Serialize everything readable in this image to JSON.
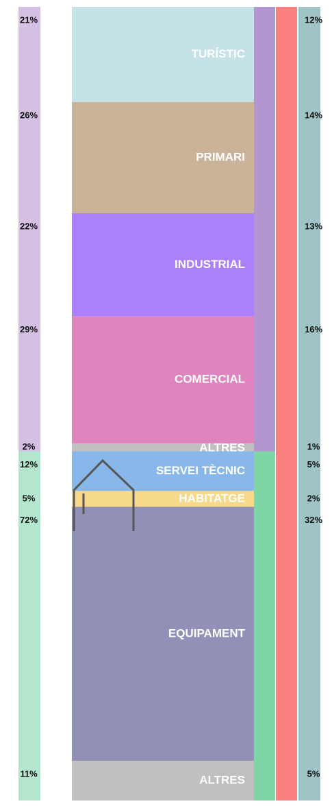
{
  "chart_data": {
    "type": "stacked-strip",
    "ylim": [
      0,
      100
    ],
    "groups": [
      {
        "color": "#d4c0e2",
        "bar_color": "#b396cf",
        "categories": [
          "TURÍSTIC",
          "PRIMARI",
          "INDUSTRIAL",
          "COMERCIAL",
          "ALTRES"
        ],
        "colors": [
          "#c5e3e7",
          "#cbb399",
          "#ac80fc",
          "#e084c0",
          "#c0c0c0"
        ],
        "values": [
          12,
          14,
          13,
          16,
          1
        ],
        "value_labels": [
          "12%",
          "14%",
          "13%",
          "16%",
          "1%"
        ],
        "group_values": [
          21,
          26,
          22,
          29,
          2
        ],
        "group_value_labels": [
          "21%",
          "26%",
          "22%",
          "29%",
          "2%"
        ]
      },
      {
        "color": "#b3e6cc",
        "bar_color": "#7fd6a5",
        "categories": [
          "SERVEI TÈCNIC",
          "HABITATGE",
          "EQUIPAMENT",
          "ALTRES"
        ],
        "colors": [
          "#88b8ea",
          "#f7d98c",
          "#9191b8",
          "#c0c0c0"
        ],
        "values": [
          5,
          2,
          32,
          5
        ],
        "value_labels": [
          "5%",
          "2%",
          "32%",
          "5%"
        ],
        "group_values": [
          12,
          5,
          72,
          11
        ],
        "group_value_labels": [
          "12%",
          "5%",
          "72%",
          "11%"
        ]
      }
    ],
    "total_colors": [
      "#fb8080",
      "#9ec4c6"
    ]
  }
}
